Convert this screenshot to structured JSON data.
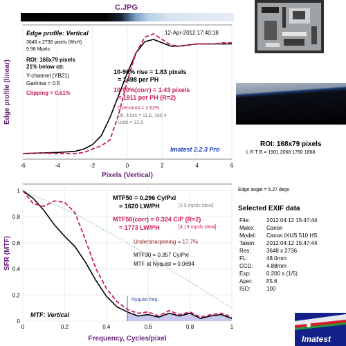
{
  "window": {
    "title": "C.JPG"
  },
  "colors": {
    "title": "#6a1f7a",
    "axis_label": "#6a1f7a",
    "accent": "#cc1a5a",
    "black": "#000000",
    "blue": "#1a3fc0",
    "fill": "#c8c8ee"
  },
  "top_panel": {
    "header_left": "Edge profile: Vertical",
    "date": "12-Apr-2012 17:40:18",
    "info": [
      "3648 x 2736 pixels (WxH)",
      "9.98 Mpxls"
    ],
    "roi_line1": "ROI: 168x79 pixels",
    "roi_line2": "21% below ctr.",
    "channel": "Y-channel (YB21)",
    "gamma": "Gamma = 0.5",
    "clipping": "Clipping = 0.61%",
    "rise": "10-90% rise = 1.83 pixels",
    "rise_ph": "= 1498 per PH",
    "rise_corr": "10-90%(corr) = 1.43 pixels",
    "rise_corr_ph": "= 1911 per PH (R=2)",
    "overshoot": "Overshoot = 2.62%",
    "dk_lt": "Dk, lt lvls = 11.6, 160.4",
    "lt_dk": "Lt/dk = 13.8",
    "brand": "Imatest 2.2.3 Pro",
    "xlabel": "Pixels (Vertical)",
    "ylabel": "Edge profile (linear)"
  },
  "bottom_panel": {
    "header_left": "MTF: Vertical",
    "mtf50": "MTF50 = 0.296 Cy/Pxl",
    "mtf50_lw": "= 1620 LW/PH",
    "mtf50_ideal": "[3.5 mpxls ideal]",
    "mtf50_corr": "MTF50(corr) = 0.324 C/P (R=2)",
    "mtf50_corr_lw": "= 1773 LW/PH",
    "mtf50_corr_ideal": "[4.19 mpxls ideal]",
    "undersharpening": "Undersharpening = 17.7%",
    "mtf30": "MTF30 = 0.357 Cy/Pxl",
    "nyquist_mtf": "MTF at Nyquist = 0.0694",
    "nyquist_label": "Nyquist freq.",
    "xlabel": "Frequency, Cycles/pixel",
    "ylabel": "SFR (MTF)"
  },
  "roi_info": {
    "title": "ROI: 168x79 pixels",
    "ltrb": "L R T B = 1901 2068 1790 1868",
    "edge_angle": "Edge angle = 5.27 degs"
  },
  "exif": {
    "title": "Selected EXIF data",
    "rows": [
      {
        "k": "File:",
        "v": "2012:04:12 15:47:44"
      },
      {
        "k": "Make:",
        "v": "Canon"
      },
      {
        "k": "Model:",
        "v": "Canon IXUS 510 HS"
      },
      {
        "k": "Taken:",
        "v": "2012:04:12 15:47:44"
      },
      {
        "k": "Res:",
        "v": "3648 x 2736"
      },
      {
        "k": "FL:",
        "v": "48.0mm"
      },
      {
        "k": "CCD:",
        "v": "4.88mm"
      },
      {
        "k": "Exp:",
        "v": "0.200 s  (1/5)"
      },
      {
        "k": "Aper:",
        "v": "f/5.6"
      },
      {
        "k": "ISO:",
        "v": "100"
      }
    ]
  },
  "logo": {
    "text": "Imatest"
  },
  "chart_data": [
    {
      "type": "line",
      "title": "Edge profile: Vertical",
      "xlabel": "Pixels (Vertical)",
      "ylabel": "Edge profile (linear)",
      "xlim": [
        -6,
        6
      ],
      "ylim": [
        -0.05,
        1.15
      ],
      "xticks": [
        -6,
        -4,
        -2,
        0,
        2,
        4,
        6
      ],
      "series": [
        {
          "style": "solid-black",
          "x": [
            -6,
            -5,
            -4,
            -3,
            -2.5,
            -2,
            -1.5,
            -1,
            -0.5,
            0,
            0.5,
            1,
            1.5,
            2,
            2.5,
            3,
            3.5,
            4,
            4.5,
            5,
            5.5,
            6
          ],
          "y": [
            0.0,
            0.005,
            0.01,
            0.02,
            0.04,
            0.08,
            0.16,
            0.32,
            0.52,
            0.72,
            0.9,
            1.0,
            1.02,
            0.99,
            0.96,
            0.96,
            0.97,
            0.98,
            0.98,
            0.98,
            0.98,
            0.98
          ]
        },
        {
          "style": "dashed-magenta",
          "x": [
            -6,
            -5,
            -4,
            -3,
            -2.5,
            -2,
            -1.5,
            -1,
            -0.5,
            0,
            0.5,
            1,
            1.5,
            2,
            2.5,
            3,
            3.5,
            4,
            4.5,
            5,
            5.5,
            6
          ],
          "y": [
            0.0,
            0.005,
            0.0,
            0.0,
            0.01,
            0.04,
            0.07,
            0.12,
            0.35,
            0.65,
            0.9,
            1.04,
            1.07,
            1.02,
            0.97,
            0.96,
            0.97,
            0.98,
            0.98,
            0.98,
            0.99,
            0.99
          ]
        }
      ]
    },
    {
      "type": "line",
      "title": "MTF: Vertical",
      "xlabel": "Frequency, Cycles/pixel",
      "ylabel": "SFR (MTF)",
      "xlim": [
        0,
        1
      ],
      "ylim": [
        0,
        1.05
      ],
      "xticks": [
        0,
        0.2,
        0.4,
        0.6,
        0.8,
        1
      ],
      "yticks": [
        0,
        0.2,
        0.4,
        0.6,
        0.8,
        1
      ],
      "nyquist": 0.5,
      "series": [
        {
          "style": "solid-black",
          "x": [
            0,
            0.05,
            0.1,
            0.15,
            0.2,
            0.25,
            0.3,
            0.35,
            0.4,
            0.45,
            0.5,
            0.55,
            0.6,
            0.65,
            0.7,
            0.75,
            0.8,
            0.85,
            0.9,
            0.95,
            1.0
          ],
          "y": [
            1.0,
            0.94,
            0.85,
            0.74,
            0.65,
            0.57,
            0.45,
            0.31,
            0.19,
            0.11,
            0.07,
            0.04,
            0.05,
            0.03,
            0.06,
            0.04,
            0.06,
            0.02,
            0.04,
            0.05,
            0.02
          ]
        },
        {
          "style": "dashed-magenta",
          "x": [
            0,
            0.05,
            0.1,
            0.15,
            0.2,
            0.25,
            0.3,
            0.35,
            0.4,
            0.45,
            0.5,
            0.55,
            0.6,
            0.65,
            0.7,
            0.75,
            0.8,
            0.85,
            0.9,
            0.95,
            1.0
          ],
          "y": [
            1.0,
            0.9,
            0.88,
            0.92,
            0.91,
            0.83,
            0.62,
            0.4,
            0.25,
            0.15,
            0.09,
            0.06,
            0.07,
            0.04,
            0.08,
            0.05,
            0.07,
            0.03,
            0.05,
            0.06,
            0.03
          ]
        },
        {
          "style": "dotted-cyan",
          "x": [
            0,
            0.1,
            0.2,
            0.3,
            0.4,
            0.5,
            0.6,
            0.7,
            0.8,
            0.9,
            1.0
          ],
          "y": [
            1.0,
            0.93,
            0.86,
            0.78,
            0.69,
            0.6,
            0.5,
            0.4,
            0.3,
            0.2,
            0.1
          ]
        }
      ]
    }
  ]
}
